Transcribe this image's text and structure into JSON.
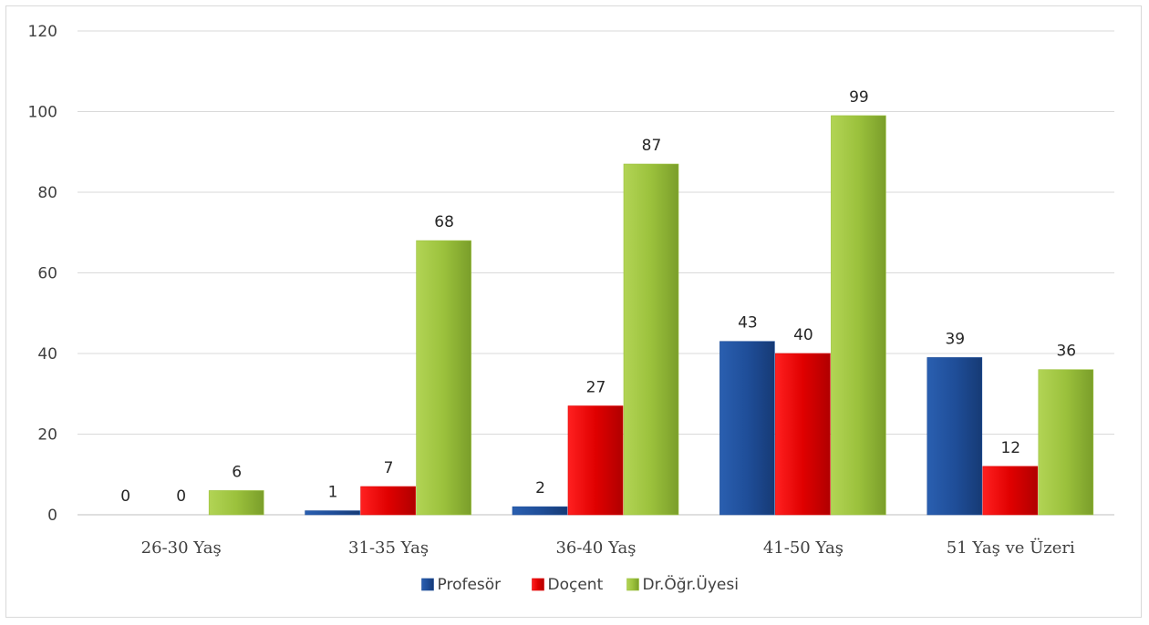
{
  "chart_data": {
    "type": "bar",
    "categories": [
      "26-30 Yaş",
      "31-35 Yaş",
      "36-40 Yaş",
      "41-50 Yaş",
      "51 Yaş ve Üzeri"
    ],
    "series": [
      {
        "name": "Profesör",
        "values": [
          0,
          1,
          2,
          43,
          39
        ],
        "color": "#1f4e99"
      },
      {
        "name": "Doçent",
        "values": [
          0,
          7,
          27,
          40,
          12
        ],
        "color": "#e00000"
      },
      {
        "name": "Dr.Öğr.Üyesi",
        "values": [
          6,
          68,
          87,
          99,
          36
        ],
        "color": "#9bc13c"
      }
    ],
    "yticks": [
      0,
      20,
      40,
      60,
      80,
      100,
      120
    ],
    "ylim": [
      0,
      120
    ],
    "grid": true,
    "legend": "bottom-center",
    "title": "",
    "xlabel": "",
    "ylabel": ""
  }
}
